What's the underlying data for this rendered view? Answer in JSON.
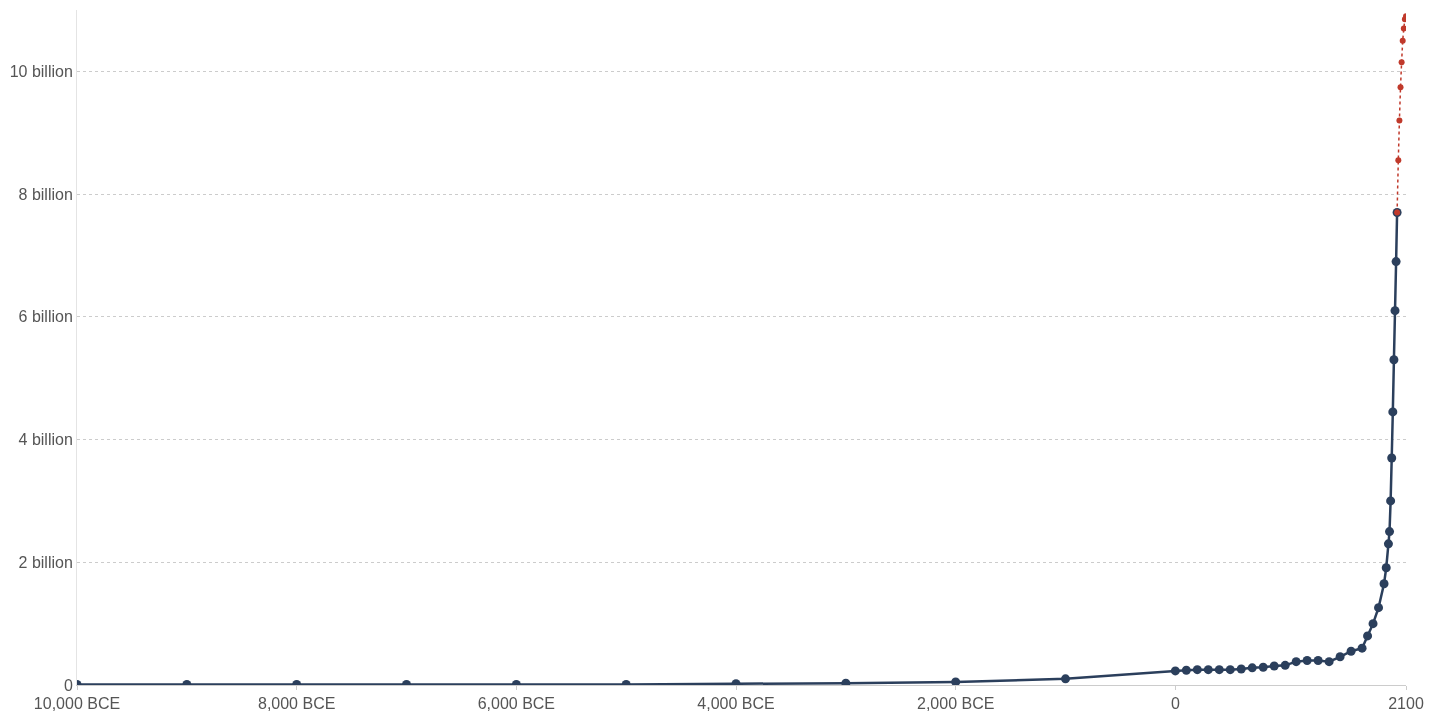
{
  "chart_data": {
    "type": "line",
    "xlim": [
      -10000,
      2100
    ],
    "ylim": [
      0,
      11000000000
    ],
    "xticks": [
      {
        "value": -10000,
        "label": "10,000 BCE"
      },
      {
        "value": -8000,
        "label": "8,000 BCE"
      },
      {
        "value": -6000,
        "label": "6,000 BCE"
      },
      {
        "value": -4000,
        "label": "4,000 BCE"
      },
      {
        "value": -2000,
        "label": "2,000 BCE"
      },
      0,
      2100
    ],
    "yticks": [
      0,
      {
        "value": 2000000000,
        "label": "2 billion"
      },
      {
        "value": 4000000000,
        "label": "4 billion"
      },
      {
        "value": 6000000000,
        "label": "6 billion"
      },
      {
        "value": 8000000000,
        "label": "8 billion"
      },
      {
        "value": 10000000000,
        "label": "10 billion"
      }
    ],
    "grid": "y",
    "marker": "circle",
    "series": [
      {
        "color": "#2b3f5c",
        "line_style": "solid",
        "x": [
          -10000,
          -9000,
          -8000,
          -7000,
          -6000,
          -5000,
          -4000,
          -3000,
          -2000,
          -1000,
          0,
          100,
          200,
          300,
          400,
          500,
          600,
          700,
          800,
          900,
          1000,
          1100,
          1200,
          1300,
          1400,
          1500,
          1600,
          1700,
          1750,
          1800,
          1850,
          1900,
          1920,
          1940,
          1950,
          1960,
          1970,
          1980,
          1990,
          2000,
          2010,
          2019
        ],
        "values": [
          10000000,
          10000000,
          10000000,
          10000000,
          10000000,
          10000000,
          20000000,
          30000000,
          50000000,
          100000000,
          230000000,
          240000000,
          250000000,
          250000000,
          250000000,
          250000000,
          260000000,
          280000000,
          290000000,
          310000000,
          320000000,
          380000000,
          400000000,
          400000000,
          380000000,
          460000000,
          550000000,
          600000000,
          800000000,
          1000000000,
          1260000000,
          1650000000,
          1910000000,
          2300000000,
          2500000000,
          3000000000,
          3700000000,
          4450000000,
          5300000000,
          6100000000,
          6900000000,
          7700000000
        ]
      },
      {
        "color": "#c0392b",
        "line_style": "dotted",
        "x": [
          2019,
          2030,
          2040,
          2050,
          2060,
          2070,
          2080,
          2090,
          2100
        ],
        "values": [
          7700000000,
          8550000000,
          9200000000,
          9740000000,
          10150000000,
          10500000000,
          10700000000,
          10850000000,
          10900000000
        ]
      }
    ]
  }
}
